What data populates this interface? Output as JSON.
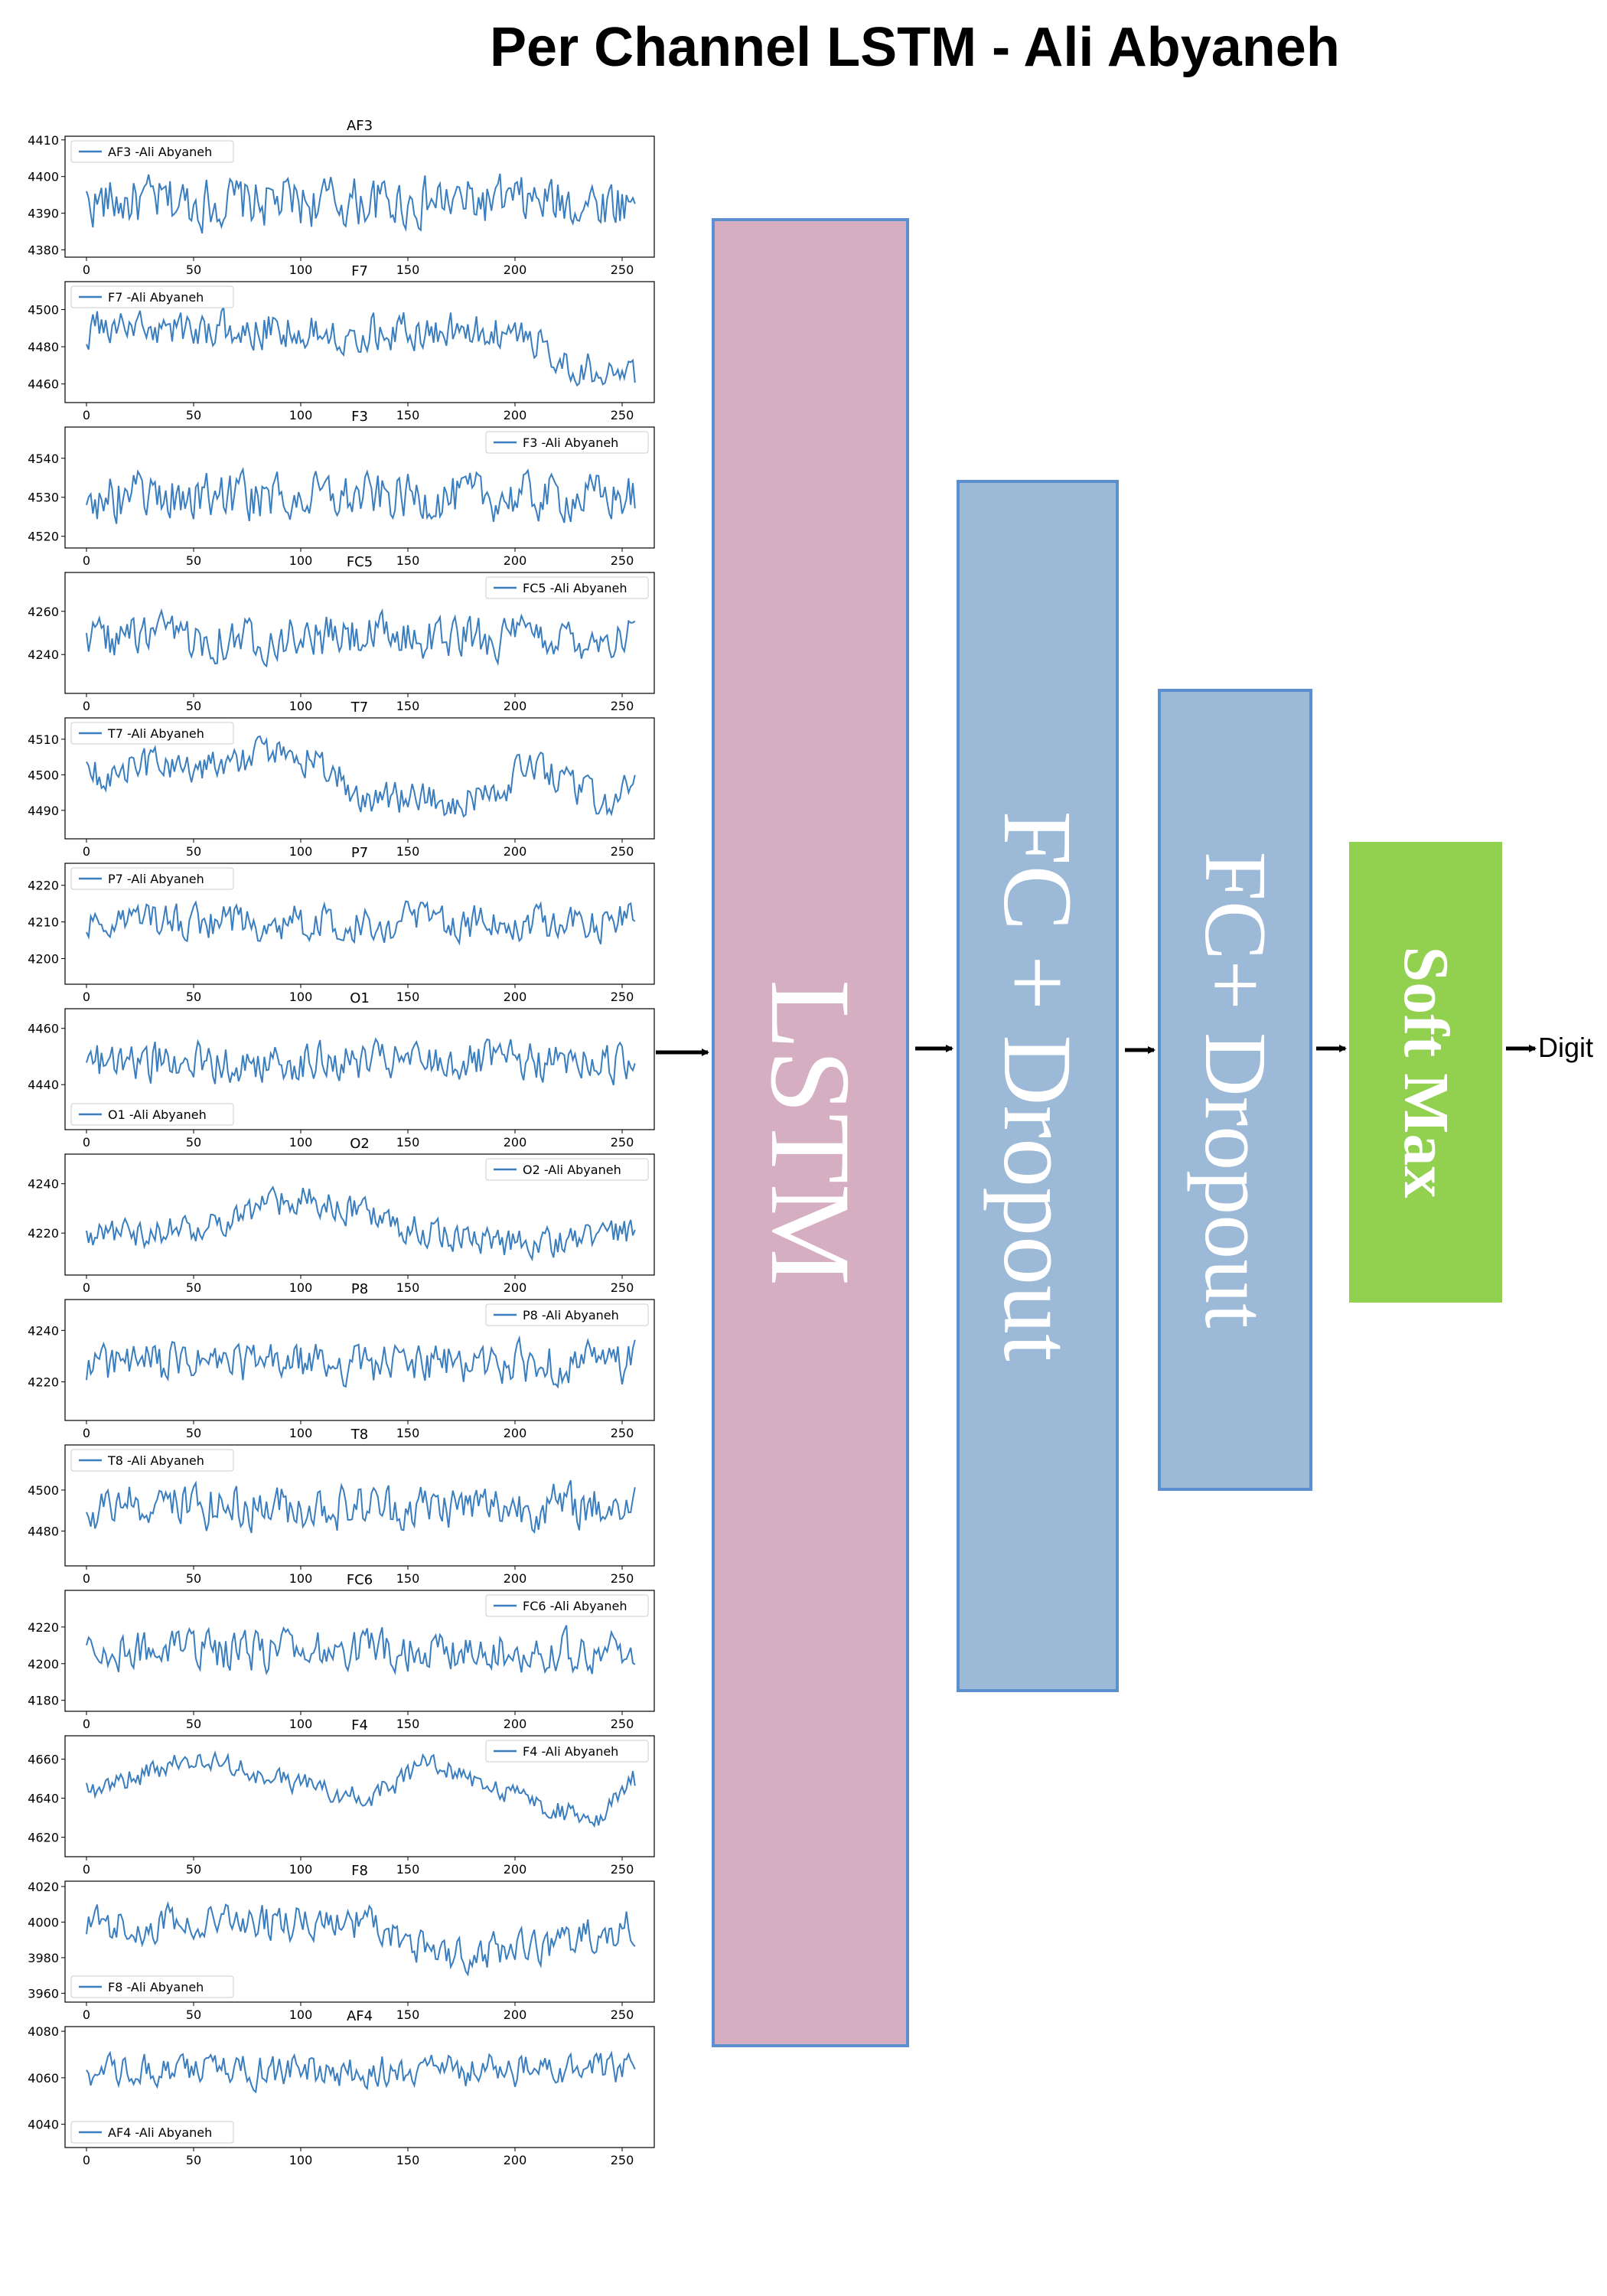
{
  "title": "Per Channel LSTM - Ali Abyaneh",
  "blocks": {
    "lstm": {
      "label": "LSTM",
      "color": "#d6aec2"
    },
    "fc1": {
      "label": "FC + Dropout",
      "color": "#9cb9d7"
    },
    "fc2": {
      "label": "FC+ Dropout",
      "color": "#9cb9d7"
    },
    "softmax": {
      "label": "Soft Max",
      "color": "#92d050"
    }
  },
  "output_label": "Digit",
  "colors": {
    "line": "#3a7ebf",
    "block_border": "#5b8fcf",
    "arrow": "#000000"
  },
  "chart_data": [
    {
      "type": "line",
      "title": "AF3",
      "legend": "AF3 -Ali Abyaneh",
      "legend_loc": "upper left",
      "xlim": [
        -10,
        265
      ],
      "xticks": [
        0,
        50,
        100,
        150,
        200,
        250
      ],
      "ylim": [
        4378,
        4411
      ],
      "yticks": [
        4380,
        4390,
        4400,
        4410
      ],
      "base": 4393,
      "amp": 7
    },
    {
      "type": "line",
      "title": "F7",
      "legend": "F7 -Ali Abyaneh",
      "legend_loc": "upper left",
      "xlim": [
        -10,
        265
      ],
      "xticks": [
        0,
        50,
        100,
        150,
        200,
        250
      ],
      "ylim": [
        4450,
        4515
      ],
      "yticks": [
        4460,
        4480,
        4500
      ],
      "base": 4488,
      "amp": 10,
      "trend": [
        [
          0,
          4490
        ],
        [
          200,
          4488
        ],
        [
          230,
          4470
        ],
        [
          255,
          4460
        ]
      ]
    },
    {
      "type": "line",
      "title": "F3",
      "legend": "F3 -Ali Abyaneh",
      "legend_loc": "upper right",
      "xlim": [
        -10,
        265
      ],
      "xticks": [
        0,
        50,
        100,
        150,
        200,
        250
      ],
      "ylim": [
        4517,
        4548
      ],
      "yticks": [
        4520,
        4530,
        4540
      ],
      "base": 4530,
      "amp": 6
    },
    {
      "type": "line",
      "title": "FC5",
      "legend": "FC5 -Ali Abyaneh",
      "legend_loc": "upper right",
      "xlim": [
        -10,
        265
      ],
      "xticks": [
        0,
        50,
        100,
        150,
        200,
        250
      ],
      "ylim": [
        4222,
        4278
      ],
      "yticks": [
        4240,
        4260
      ],
      "base": 4248,
      "amp": 10
    },
    {
      "type": "line",
      "title": "T7",
      "legend": "T7 -Ali Abyaneh",
      "legend_loc": "upper left",
      "xlim": [
        -10,
        265
      ],
      "xticks": [
        0,
        50,
        100,
        150,
        200,
        250
      ],
      "ylim": [
        4482,
        4516
      ],
      "yticks": [
        4490,
        4500,
        4510
      ],
      "base": 4500,
      "amp": 5,
      "trend": [
        [
          0,
          4500
        ],
        [
          100,
          4506
        ],
        [
          130,
          4494
        ],
        [
          180,
          4493
        ],
        [
          210,
          4502
        ],
        [
          245,
          4490
        ],
        [
          255,
          4500
        ]
      ]
    },
    {
      "type": "line",
      "title": "P7",
      "legend": "P7 -Ali Abyaneh",
      "legend_loc": "upper left",
      "xlim": [
        -10,
        265
      ],
      "xticks": [
        0,
        50,
        100,
        150,
        200,
        250
      ],
      "ylim": [
        4193,
        4226
      ],
      "yticks": [
        4200,
        4210,
        4220
      ],
      "base": 4210,
      "amp": 5
    },
    {
      "type": "line",
      "title": "O1",
      "legend": "O1 -Ali Abyaneh",
      "legend_loc": "lower left",
      "xlim": [
        -10,
        265
      ],
      "xticks": [
        0,
        50,
        100,
        150,
        200,
        250
      ],
      "ylim": [
        4424,
        4467
      ],
      "yticks": [
        4440,
        4460
      ],
      "base": 4448,
      "amp": 7
    },
    {
      "type": "line",
      "title": "O2",
      "legend": "O2 -Ali Abyaneh",
      "legend_loc": "upper right",
      "xlim": [
        -10,
        265
      ],
      "xticks": [
        0,
        50,
        100,
        150,
        200,
        250
      ],
      "ylim": [
        4203,
        4252
      ],
      "yticks": [
        4220,
        4240
      ],
      "base": 4222,
      "amp": 6,
      "trend": [
        [
          0,
          4218
        ],
        [
          50,
          4222
        ],
        [
          100,
          4235
        ],
        [
          150,
          4222
        ],
        [
          200,
          4215
        ],
        [
          255,
          4220
        ]
      ]
    },
    {
      "type": "line",
      "title": "P8",
      "legend": "P8 -Ali Abyaneh",
      "legend_loc": "upper right",
      "xlim": [
        -10,
        265
      ],
      "xticks": [
        0,
        50,
        100,
        150,
        200,
        250
      ],
      "ylim": [
        4205,
        4252
      ],
      "yticks": [
        4220,
        4240
      ],
      "base": 4227,
      "amp": 8
    },
    {
      "type": "line",
      "title": "T8",
      "legend": "T8 -Ali Abyaneh",
      "legend_loc": "upper left",
      "xlim": [
        -10,
        265
      ],
      "xticks": [
        0,
        50,
        100,
        150,
        200,
        250
      ],
      "ylim": [
        4463,
        4522
      ],
      "yticks": [
        4480,
        4500
      ],
      "base": 4492,
      "amp": 11
    },
    {
      "type": "line",
      "title": "FC6",
      "legend": "FC6 -Ali Abyaneh",
      "legend_loc": "upper right",
      "xlim": [
        -10,
        265
      ],
      "xticks": [
        0,
        50,
        100,
        150,
        200,
        250
      ],
      "ylim": [
        4174,
        4240
      ],
      "yticks": [
        4180,
        4200,
        4220
      ],
      "base": 4207,
      "amp": 11
    },
    {
      "type": "line",
      "title": "F4",
      "legend": "F4 -Ali Abyaneh",
      "legend_loc": "upper right",
      "xlim": [
        -10,
        265
      ],
      "xticks": [
        0,
        50,
        100,
        150,
        200,
        250
      ],
      "ylim": [
        4610,
        4672
      ],
      "yticks": [
        4620,
        4640,
        4660
      ],
      "base": 4645,
      "amp": 6,
      "trend": [
        [
          0,
          4643
        ],
        [
          50,
          4660
        ],
        [
          100,
          4648
        ],
        [
          130,
          4640
        ],
        [
          160,
          4658
        ],
        [
          200,
          4640
        ],
        [
          240,
          4628
        ],
        [
          255,
          4650
        ]
      ]
    },
    {
      "type": "line",
      "title": "F8",
      "legend": "F8 -Ali Abyaneh",
      "legend_loc": "lower left",
      "xlim": [
        -10,
        265
      ],
      "xticks": [
        0,
        50,
        100,
        150,
        200,
        250
      ],
      "ylim": [
        3955,
        4023
      ],
      "yticks": [
        3960,
        3980,
        4000,
        4020
      ],
      "base": 3995,
      "amp": 10,
      "trend": [
        [
          0,
          3998
        ],
        [
          130,
          4000
        ],
        [
          160,
          3982
        ],
        [
          210,
          3985
        ],
        [
          255,
          3998
        ]
      ]
    },
    {
      "type": "line",
      "title": "AF4",
      "legend": "AF4 -Ali Abyaneh",
      "legend_loc": "lower left",
      "xlim": [
        -10,
        265
      ],
      "xticks": [
        0,
        50,
        100,
        150,
        200,
        250
      ],
      "ylim": [
        4030,
        4082
      ],
      "yticks": [
        4040,
        4060,
        4080
      ],
      "base": 4063,
      "amp": 7
    }
  ]
}
